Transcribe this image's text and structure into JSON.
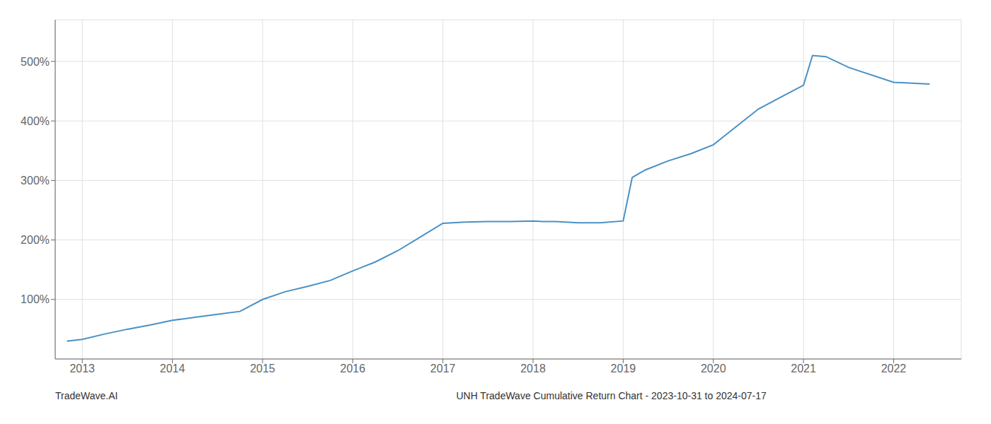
{
  "chart_data": {
    "type": "line",
    "title": "UNH TradeWave Cumulative Return Chart - 2023-10-31 to 2024-07-17",
    "annotations": [
      "TradeWave.AI"
    ],
    "x": [
      2012.83,
      2013.0,
      2013.25,
      2013.5,
      2013.75,
      2014.0,
      2014.25,
      2014.5,
      2014.75,
      2015.0,
      2015.25,
      2015.5,
      2015.75,
      2016.0,
      2016.25,
      2016.5,
      2016.75,
      2017.0,
      2017.25,
      2017.5,
      2017.75,
      2018.0,
      2018.1,
      2018.25,
      2018.5,
      2018.75,
      2019.0,
      2019.1,
      2019.25,
      2019.5,
      2019.75,
      2020.0,
      2020.25,
      2020.5,
      2020.75,
      2021.0,
      2021.1,
      2021.25,
      2021.5,
      2022.0,
      2022.4
    ],
    "values": [
      30,
      33,
      42,
      50,
      57,
      65,
      70,
      75,
      80,
      100,
      113,
      122,
      132,
      148,
      163,
      182,
      205,
      228,
      230,
      231,
      231,
      232,
      231,
      231,
      229,
      229,
      232,
      305,
      318,
      333,
      345,
      360,
      390,
      420,
      440,
      460,
      510,
      508,
      490,
      465,
      462
    ],
    "color": "#4a90c4",
    "xlim": [
      2012.7,
      2022.75
    ],
    "xticks": [
      2013,
      2014,
      2015,
      2016,
      2017,
      2018,
      2019,
      2020,
      2021,
      2022
    ],
    "ylim": [
      0,
      570
    ],
    "yticks": [
      {
        "value": 100,
        "label": "100%"
      },
      {
        "value": 200,
        "label": "200%"
      },
      {
        "value": 300,
        "label": "300%"
      },
      {
        "value": 400,
        "label": "400%"
      },
      {
        "value": 500,
        "label": "500%"
      }
    ],
    "grid": true
  }
}
